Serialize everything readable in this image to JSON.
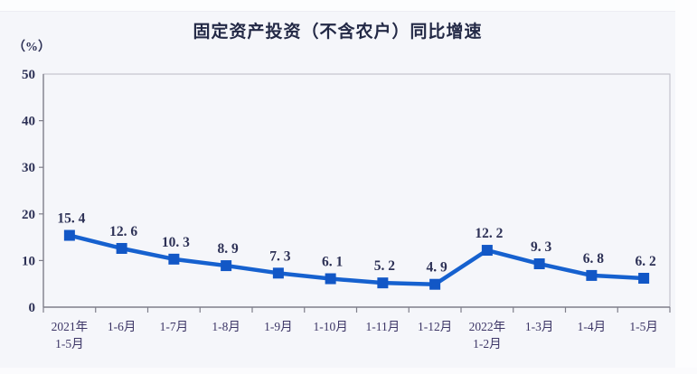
{
  "page": {
    "title": "固定资产投资（不含农户）同比增速"
  },
  "chart_data": {
    "type": "line",
    "title": "固定资产投资（不含农户）同比增速",
    "unit_label": "（%）",
    "categories": [
      "2021年\n1-5月",
      "1-6月",
      "1-7月",
      "1-8月",
      "1-9月",
      "1-10月",
      "1-11月",
      "1-12月",
      "2022年\n1-2月",
      "1-3月",
      "1-4月",
      "1-5月"
    ],
    "values": [
      15.4,
      12.6,
      10.3,
      8.9,
      7.3,
      6.1,
      5.2,
      4.9,
      12.2,
      9.3,
      6.8,
      6.2
    ],
    "point_labels": [
      "15. 4",
      "12. 6",
      "10. 3",
      "8. 9",
      "7. 3",
      "6. 1",
      "5. 2",
      "4. 9",
      "12. 2",
      "9. 3",
      "6. 8",
      "6. 2"
    ],
    "xlabel": "",
    "ylabel": "（%）",
    "ylim": [
      0,
      50
    ],
    "y_ticks": [
      0,
      10,
      20,
      30,
      40,
      50
    ],
    "grid": false,
    "legend": "none",
    "marker": "square",
    "colors": {
      "line": "#1661cf",
      "marker": "#1257c6",
      "point_label_text": "#2d3156",
      "y_axis_text": "#2d3156",
      "x_axis_text": "#3c3566",
      "title_text": "#232946",
      "frame": "#babbc4",
      "axis_line": "#7f7f8a",
      "background": "#f5f6fa"
    }
  }
}
